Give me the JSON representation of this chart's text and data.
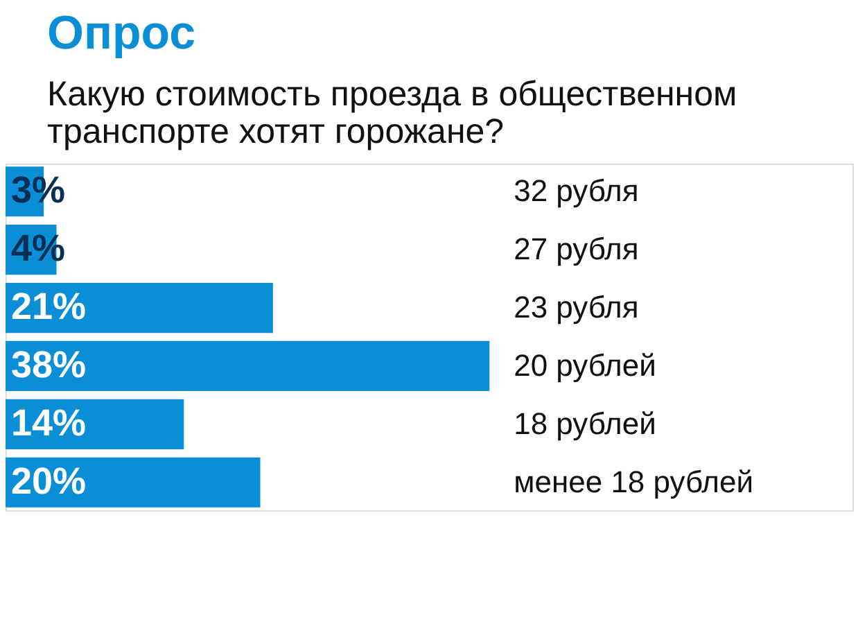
{
  "chart_data": {
    "type": "bar",
    "orientation": "horizontal",
    "title": "Опрос",
    "subtitle": "Какую стоимость проезда в общественном транспорте хотят горожане?",
    "categories": [
      "32 рубля",
      "27 рубля",
      "23 рубля",
      "20 рублей",
      "18 рублей",
      "менее 18 рублей"
    ],
    "values": [
      3,
      4,
      21,
      38,
      14,
      20
    ],
    "value_labels": [
      "3%",
      "4%",
      "21%",
      "38%",
      "14%",
      "20%"
    ],
    "color": "#0a8fd6",
    "tick_labels": false
  }
}
